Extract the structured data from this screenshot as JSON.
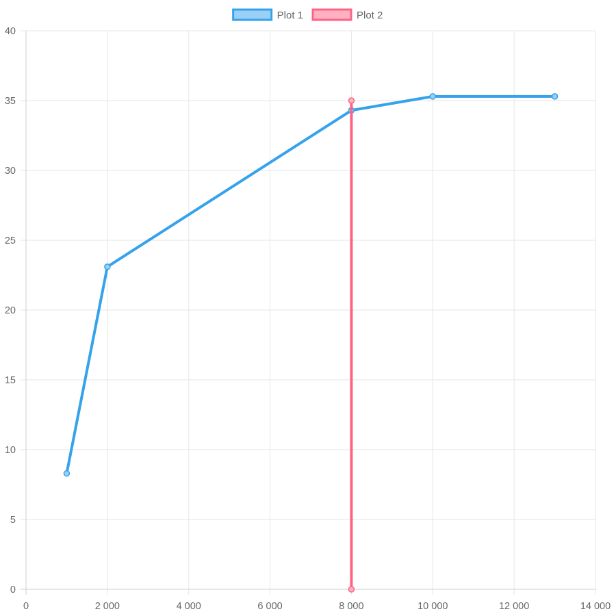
{
  "chart_data": {
    "type": "line",
    "title": "",
    "xlabel": "",
    "ylabel": "",
    "xlim": [
      0,
      14000
    ],
    "ylim": [
      0,
      40
    ],
    "x_ticks": [
      0,
      2000,
      4000,
      6000,
      8000,
      10000,
      12000,
      14000
    ],
    "x_tick_labels": [
      "0",
      "2 000",
      "4 000",
      "6 000",
      "8 000",
      "10 000",
      "12 000",
      "14 000"
    ],
    "y_ticks": [
      0,
      5,
      10,
      15,
      20,
      25,
      30,
      35,
      40
    ],
    "y_tick_labels": [
      "0",
      "5",
      "10",
      "15",
      "20",
      "25",
      "30",
      "35",
      "40"
    ],
    "grid": true,
    "legend_position": "top-center",
    "series": [
      {
        "name": "Plot 1",
        "color": "#36a2eb",
        "fill": "#9ad0f5",
        "points": [
          {
            "x": 1000,
            "y": 8.3
          },
          {
            "x": 2000,
            "y": 23.1
          },
          {
            "x": 8000,
            "y": 34.3
          },
          {
            "x": 10000,
            "y": 35.3
          },
          {
            "x": 13000,
            "y": 35.3
          }
        ]
      },
      {
        "name": "Plot 2",
        "color": "#ff6384",
        "fill": "#ffb1c1",
        "points": [
          {
            "x": 8000,
            "y": 35
          },
          {
            "x": 8000,
            "y": 0
          }
        ]
      }
    ]
  }
}
